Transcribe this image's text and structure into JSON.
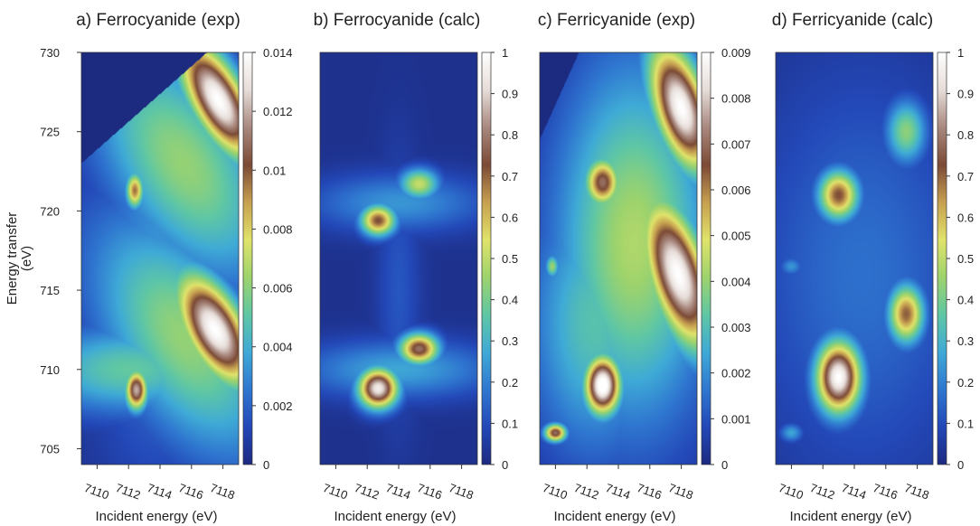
{
  "figure": {
    "y_axis_label": "Energy transfer\n(eV)"
  },
  "palette": [
    "#1c2a80",
    "#2348b8",
    "#2f77d0",
    "#3faad6",
    "#5fc7a4",
    "#9ed36c",
    "#e0e36a",
    "#c7a050",
    "#7c4a36",
    "#a8887e",
    "#e6dcd8",
    "#ffffff"
  ],
  "chart_data": [
    {
      "type": "heatmap",
      "title": "a) Ferrocyanide (exp)",
      "xlabel": "Incident energy (eV)",
      "ylabel": "Energy transfer (eV)",
      "xlim": [
        7109,
        7119
      ],
      "ylim": [
        704,
        730
      ],
      "x_ticks": [
        "7110",
        "7112",
        "7114",
        "7116",
        "7118"
      ],
      "y_ticks": [
        "705",
        "710",
        "715",
        "720",
        "725",
        "730"
      ],
      "colorbar": {
        "min": 0,
        "max": 0.014,
        "ticks": [
          "0",
          "0.002",
          "0.004",
          "0.006",
          "0.008",
          "0.01",
          "0.012",
          "0.014"
        ]
      },
      "masked_region": {
        "description": "no data above diagonal",
        "corner_left": [
          7109,
          723
        ],
        "corner_right": [
          7117,
          730
        ]
      },
      "features": [
        {
          "x": 7112.5,
          "y": 708.7,
          "value": 0.012,
          "sx": 0.5,
          "sy": 0.9
        },
        {
          "x": 7112.4,
          "y": 721.3,
          "value": 0.0095,
          "sx": 0.4,
          "sy": 0.8
        },
        {
          "x": 7117.5,
          "y": 712.5,
          "value": 0.014,
          "sx": 1.3,
          "sy": 2.8,
          "rot": -0.5
        },
        {
          "x": 7117.7,
          "y": 727.0,
          "value": 0.014,
          "sx": 1.2,
          "sy": 3.0,
          "rot": -0.5
        },
        {
          "x": 7115.5,
          "y": 712.0,
          "value": 0.006,
          "sx": 3.2,
          "sy": 6.0,
          "rot": -0.55
        },
        {
          "x": 7115.5,
          "y": 723.0,
          "value": 0.006,
          "sx": 3.2,
          "sy": 6.0,
          "rot": -0.55
        },
        {
          "x": 7112.0,
          "y": 710.0,
          "value": 0.005,
          "sx": 4.5,
          "sy": 2.0
        },
        {
          "x": 7114.0,
          "y": 717.0,
          "value": 0.003,
          "sx": 3.0,
          "sy": 9.0
        }
      ]
    },
    {
      "type": "heatmap",
      "title": "b) Ferrocyanide (calc)",
      "xlabel": "Incident energy (eV)",
      "ylabel": "",
      "xlim": [
        7109,
        7119
      ],
      "ylim": [
        704,
        730
      ],
      "x_ticks": [
        "7110",
        "7112",
        "7114",
        "7116",
        "7118"
      ],
      "y_ticks": [],
      "colorbar": {
        "min": 0,
        "max": 1,
        "ticks": [
          "0",
          "0.1",
          "0.2",
          "0.3",
          "0.4",
          "0.5",
          "0.6",
          "0.7",
          "0.8",
          "0.9",
          "1"
        ]
      },
      "features": [
        {
          "x": 7112.7,
          "y": 708.8,
          "value": 0.95,
          "sx": 0.9,
          "sy": 0.9
        },
        {
          "x": 7115.3,
          "y": 711.3,
          "value": 0.78,
          "sx": 0.9,
          "sy": 0.7
        },
        {
          "x": 7112.7,
          "y": 719.4,
          "value": 0.72,
          "sx": 0.8,
          "sy": 0.7
        },
        {
          "x": 7115.3,
          "y": 721.7,
          "value": 0.5,
          "sx": 0.9,
          "sy": 0.7
        },
        {
          "x": 7114.0,
          "y": 710.0,
          "value": 0.25,
          "sx": 4.5,
          "sy": 1.3
        },
        {
          "x": 7114.0,
          "y": 720.5,
          "value": 0.22,
          "sx": 4.0,
          "sy": 1.3
        },
        {
          "x": 7114.0,
          "y": 715.0,
          "value": 0.1,
          "sx": 1.0,
          "sy": 6.0
        }
      ]
    },
    {
      "type": "heatmap",
      "title": "c) Ferricyanide (exp)",
      "xlabel": "Incident energy (eV)",
      "ylabel": "",
      "xlim": [
        7109,
        7119
      ],
      "ylim": [
        704,
        730
      ],
      "x_ticks": [
        "7110",
        "7112",
        "7114",
        "7116",
        "7118"
      ],
      "y_ticks": [],
      "colorbar": {
        "min": 0,
        "max": 0.009,
        "ticks": [
          "0",
          "0.001",
          "0.002",
          "0.003",
          "0.004",
          "0.005",
          "0.006",
          "0.007",
          "0.008",
          "0.009"
        ]
      },
      "masked_region": {
        "description": "no data above diagonal",
        "corner_left": [
          7109,
          724.5
        ],
        "corner_right": [
          7111.5,
          730
        ]
      },
      "features": [
        {
          "x": 7110.0,
          "y": 706.0,
          "value": 0.007,
          "sx": 0.5,
          "sy": 0.4
        },
        {
          "x": 7113.0,
          "y": 709.0,
          "value": 0.0095,
          "sx": 0.8,
          "sy": 1.3
        },
        {
          "x": 7113.0,
          "y": 721.8,
          "value": 0.007,
          "sx": 0.8,
          "sy": 1.1
        },
        {
          "x": 7109.8,
          "y": 716.5,
          "value": 0.004,
          "sx": 0.3,
          "sy": 0.5
        },
        {
          "x": 7117.8,
          "y": 716.0,
          "value": 0.009,
          "sx": 1.3,
          "sy": 3.5,
          "rot": -0.3
        },
        {
          "x": 7118.0,
          "y": 726.5,
          "value": 0.009,
          "sx": 1.2,
          "sy": 3.0,
          "rot": -0.3
        },
        {
          "x": 7115.0,
          "y": 718.0,
          "value": 0.0042,
          "sx": 3.5,
          "sy": 8.0
        },
        {
          "x": 7112.5,
          "y": 713.0,
          "value": 0.003,
          "sx": 3.0,
          "sy": 6.0
        }
      ]
    },
    {
      "type": "heatmap",
      "title": "d) Ferricyanide (calc)",
      "xlabel": "Incident energy (eV)",
      "ylabel": "",
      "xlim": [
        7109,
        7119
      ],
      "ylim": [
        704,
        730
      ],
      "x_ticks": [
        "7110",
        "7112",
        "7114",
        "7116",
        "7118"
      ],
      "y_ticks": [],
      "colorbar": {
        "min": 0,
        "max": 1,
        "ticks": [
          "0",
          "0.1",
          "0.2",
          "0.3",
          "0.4",
          "0.5",
          "0.6",
          "0.7",
          "0.8",
          "0.9",
          "1"
        ]
      },
      "features": [
        {
          "x": 7113.0,
          "y": 709.5,
          "value": 1.0,
          "sx": 1.0,
          "sy": 1.6
        },
        {
          "x": 7117.3,
          "y": 713.5,
          "value": 0.7,
          "sx": 0.8,
          "sy": 1.3
        },
        {
          "x": 7113.0,
          "y": 721.0,
          "value": 0.72,
          "sx": 0.9,
          "sy": 1.1
        },
        {
          "x": 7117.3,
          "y": 725.0,
          "value": 0.42,
          "sx": 0.9,
          "sy": 1.4
        },
        {
          "x": 7110.0,
          "y": 706.0,
          "value": 0.25,
          "sx": 0.5,
          "sy": 0.4
        },
        {
          "x": 7110.0,
          "y": 716.5,
          "value": 0.22,
          "sx": 0.5,
          "sy": 0.4
        },
        {
          "x": 7114.5,
          "y": 716.0,
          "value": 0.15,
          "sx": 5.0,
          "sy": 9.0
        }
      ]
    }
  ]
}
